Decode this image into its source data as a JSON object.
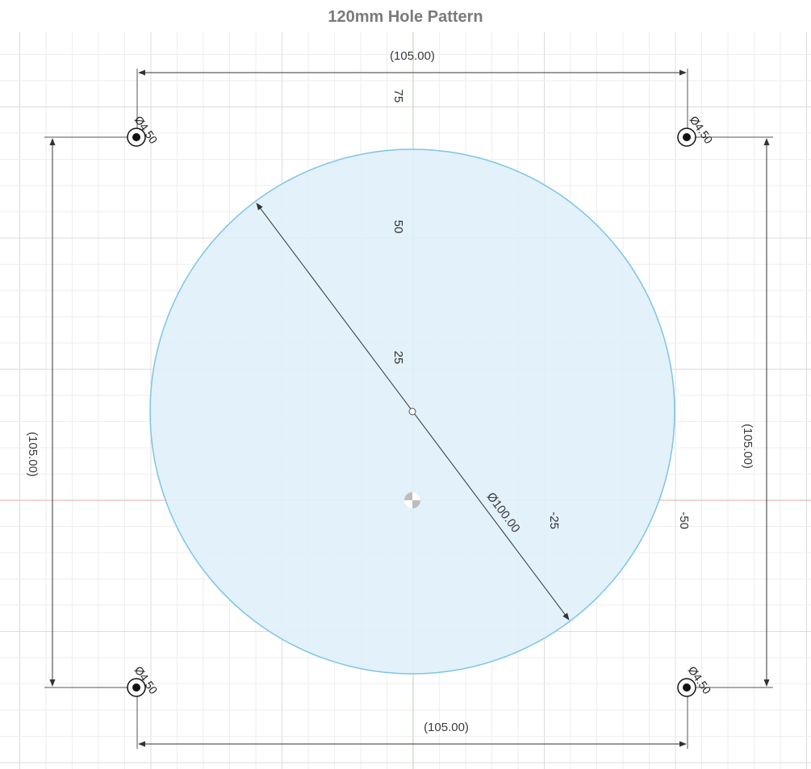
{
  "title": "120mm Hole Pattern",
  "dimensions": {
    "top_horizontal": "(105.00)",
    "bottom_horizontal": "(105.00)",
    "left_vertical": "(105.00)",
    "right_vertical": "(105.00)",
    "circle_diameter": "Ø100.00"
  },
  "holes": {
    "top_left": "Ø4.50",
    "top_right": "Ø4.50",
    "bottom_left": "Ø4.50",
    "bottom_right": "Ø4.50"
  },
  "axis_labels": {
    "v75": "75",
    "v50": "50",
    "v25": "25",
    "h_neg25": "-25",
    "h_neg50": "-50"
  },
  "colors": {
    "circle_fill": "#dff0fa",
    "circle_stroke": "#7ec4e6",
    "grid_minor": "#eeeeee",
    "grid_major": "#dcdcdc",
    "axis_red": "#f1c6c6",
    "axis_green": "#c9e4c9",
    "dimension_line": "#333333"
  }
}
